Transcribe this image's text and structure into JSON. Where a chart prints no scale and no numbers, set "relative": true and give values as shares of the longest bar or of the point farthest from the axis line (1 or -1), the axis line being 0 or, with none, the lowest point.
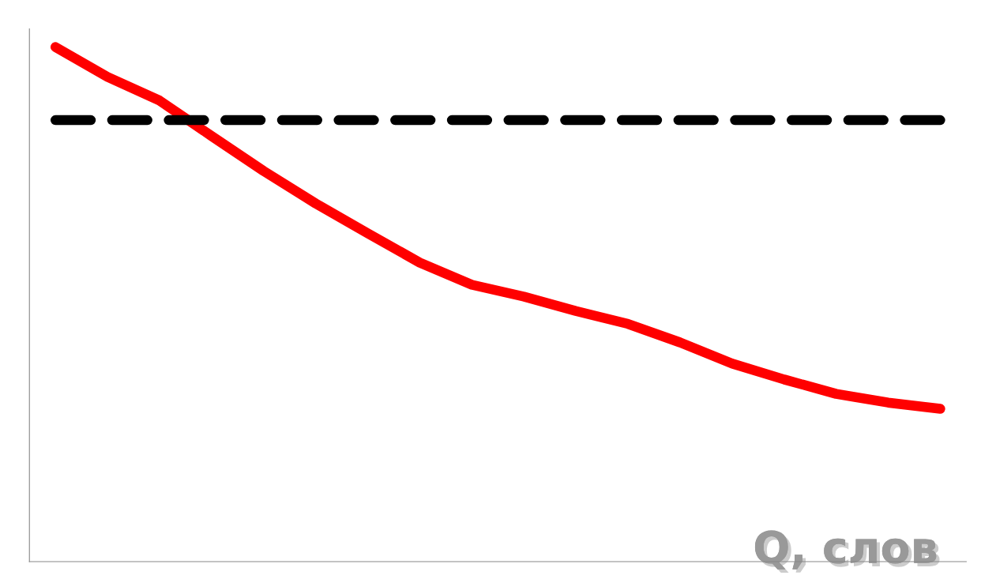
{
  "chart_data": {
    "type": "line",
    "relative": true,
    "xlabel": "Q, слов",
    "categories": [
      null,
      null,
      null,
      null,
      null,
      null,
      null,
      null,
      null,
      null,
      null,
      null,
      null,
      null,
      null,
      null,
      null,
      null
    ],
    "series": [
      {
        "color": "#ff0000",
        "values": [
          1.0,
          0.942,
          0.896,
          0.827,
          0.759,
          0.696,
          0.638,
          0.581,
          0.538,
          0.515,
          0.487,
          0.462,
          0.426,
          0.385,
          0.354,
          0.326,
          0.309,
          0.297
        ]
      },
      {
        "color": "#000000",
        "line_style": "dashed",
        "values": [
          0.858,
          0.858,
          0.858,
          0.858,
          0.858,
          0.858,
          0.858,
          0.858,
          0.858,
          0.858,
          0.858,
          0.858,
          0.858,
          0.858,
          0.858,
          0.858,
          0.858,
          0.858
        ]
      }
    ],
    "grid": false,
    "legend": false
  }
}
